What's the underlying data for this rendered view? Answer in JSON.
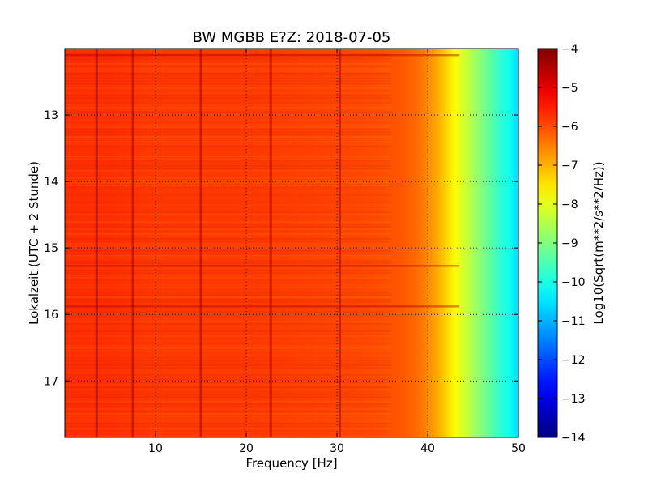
{
  "chart_data": {
    "type": "heatmap",
    "title": "BW MGBB E?Z: 2018-07-05",
    "xlabel": "Frequency [Hz]",
    "ylabel": "Lokalzeit (UTC + 2 Stunde)",
    "xlim": [
      0,
      50
    ],
    "ylim": [
      17.85,
      12.0
    ],
    "y_inverted": true,
    "x_ticks": [
      10,
      20,
      30,
      40,
      50
    ],
    "y_ticks": [
      13,
      14,
      15,
      16,
      17
    ],
    "grid": true,
    "colormap": "jet",
    "colorbar": {
      "label": "Log10(Sqrt(m**2/s**2/Hz))",
      "min": -14,
      "max": -4,
      "ticks": [
        -4,
        -5,
        -6,
        -7,
        -8,
        -9,
        -10,
        -11,
        -12,
        -13,
        -14
      ]
    },
    "spectrum_profile": {
      "frequency_hz": [
        0,
        5,
        10,
        15,
        20,
        25,
        30,
        33,
        35,
        37,
        38,
        39,
        40,
        41,
        42,
        43,
        44,
        45,
        46,
        47,
        48,
        49,
        50
      ],
      "log10_amplitude": [
        -5.7,
        -5.7,
        -5.8,
        -5.8,
        -5.8,
        -5.85,
        -5.9,
        -5.95,
        -6.0,
        -6.1,
        -6.2,
        -6.35,
        -6.6,
        -6.9,
        -7.3,
        -7.8,
        -8.2,
        -8.6,
        -9.0,
        -9.4,
        -9.8,
        -10.1,
        -10.6
      ]
    },
    "spectral_lines_hz": [
      3.5,
      7.5,
      15.0,
      22.7,
      30.3
    ],
    "time_features": [
      12.1,
      15.27,
      15.88
    ]
  }
}
